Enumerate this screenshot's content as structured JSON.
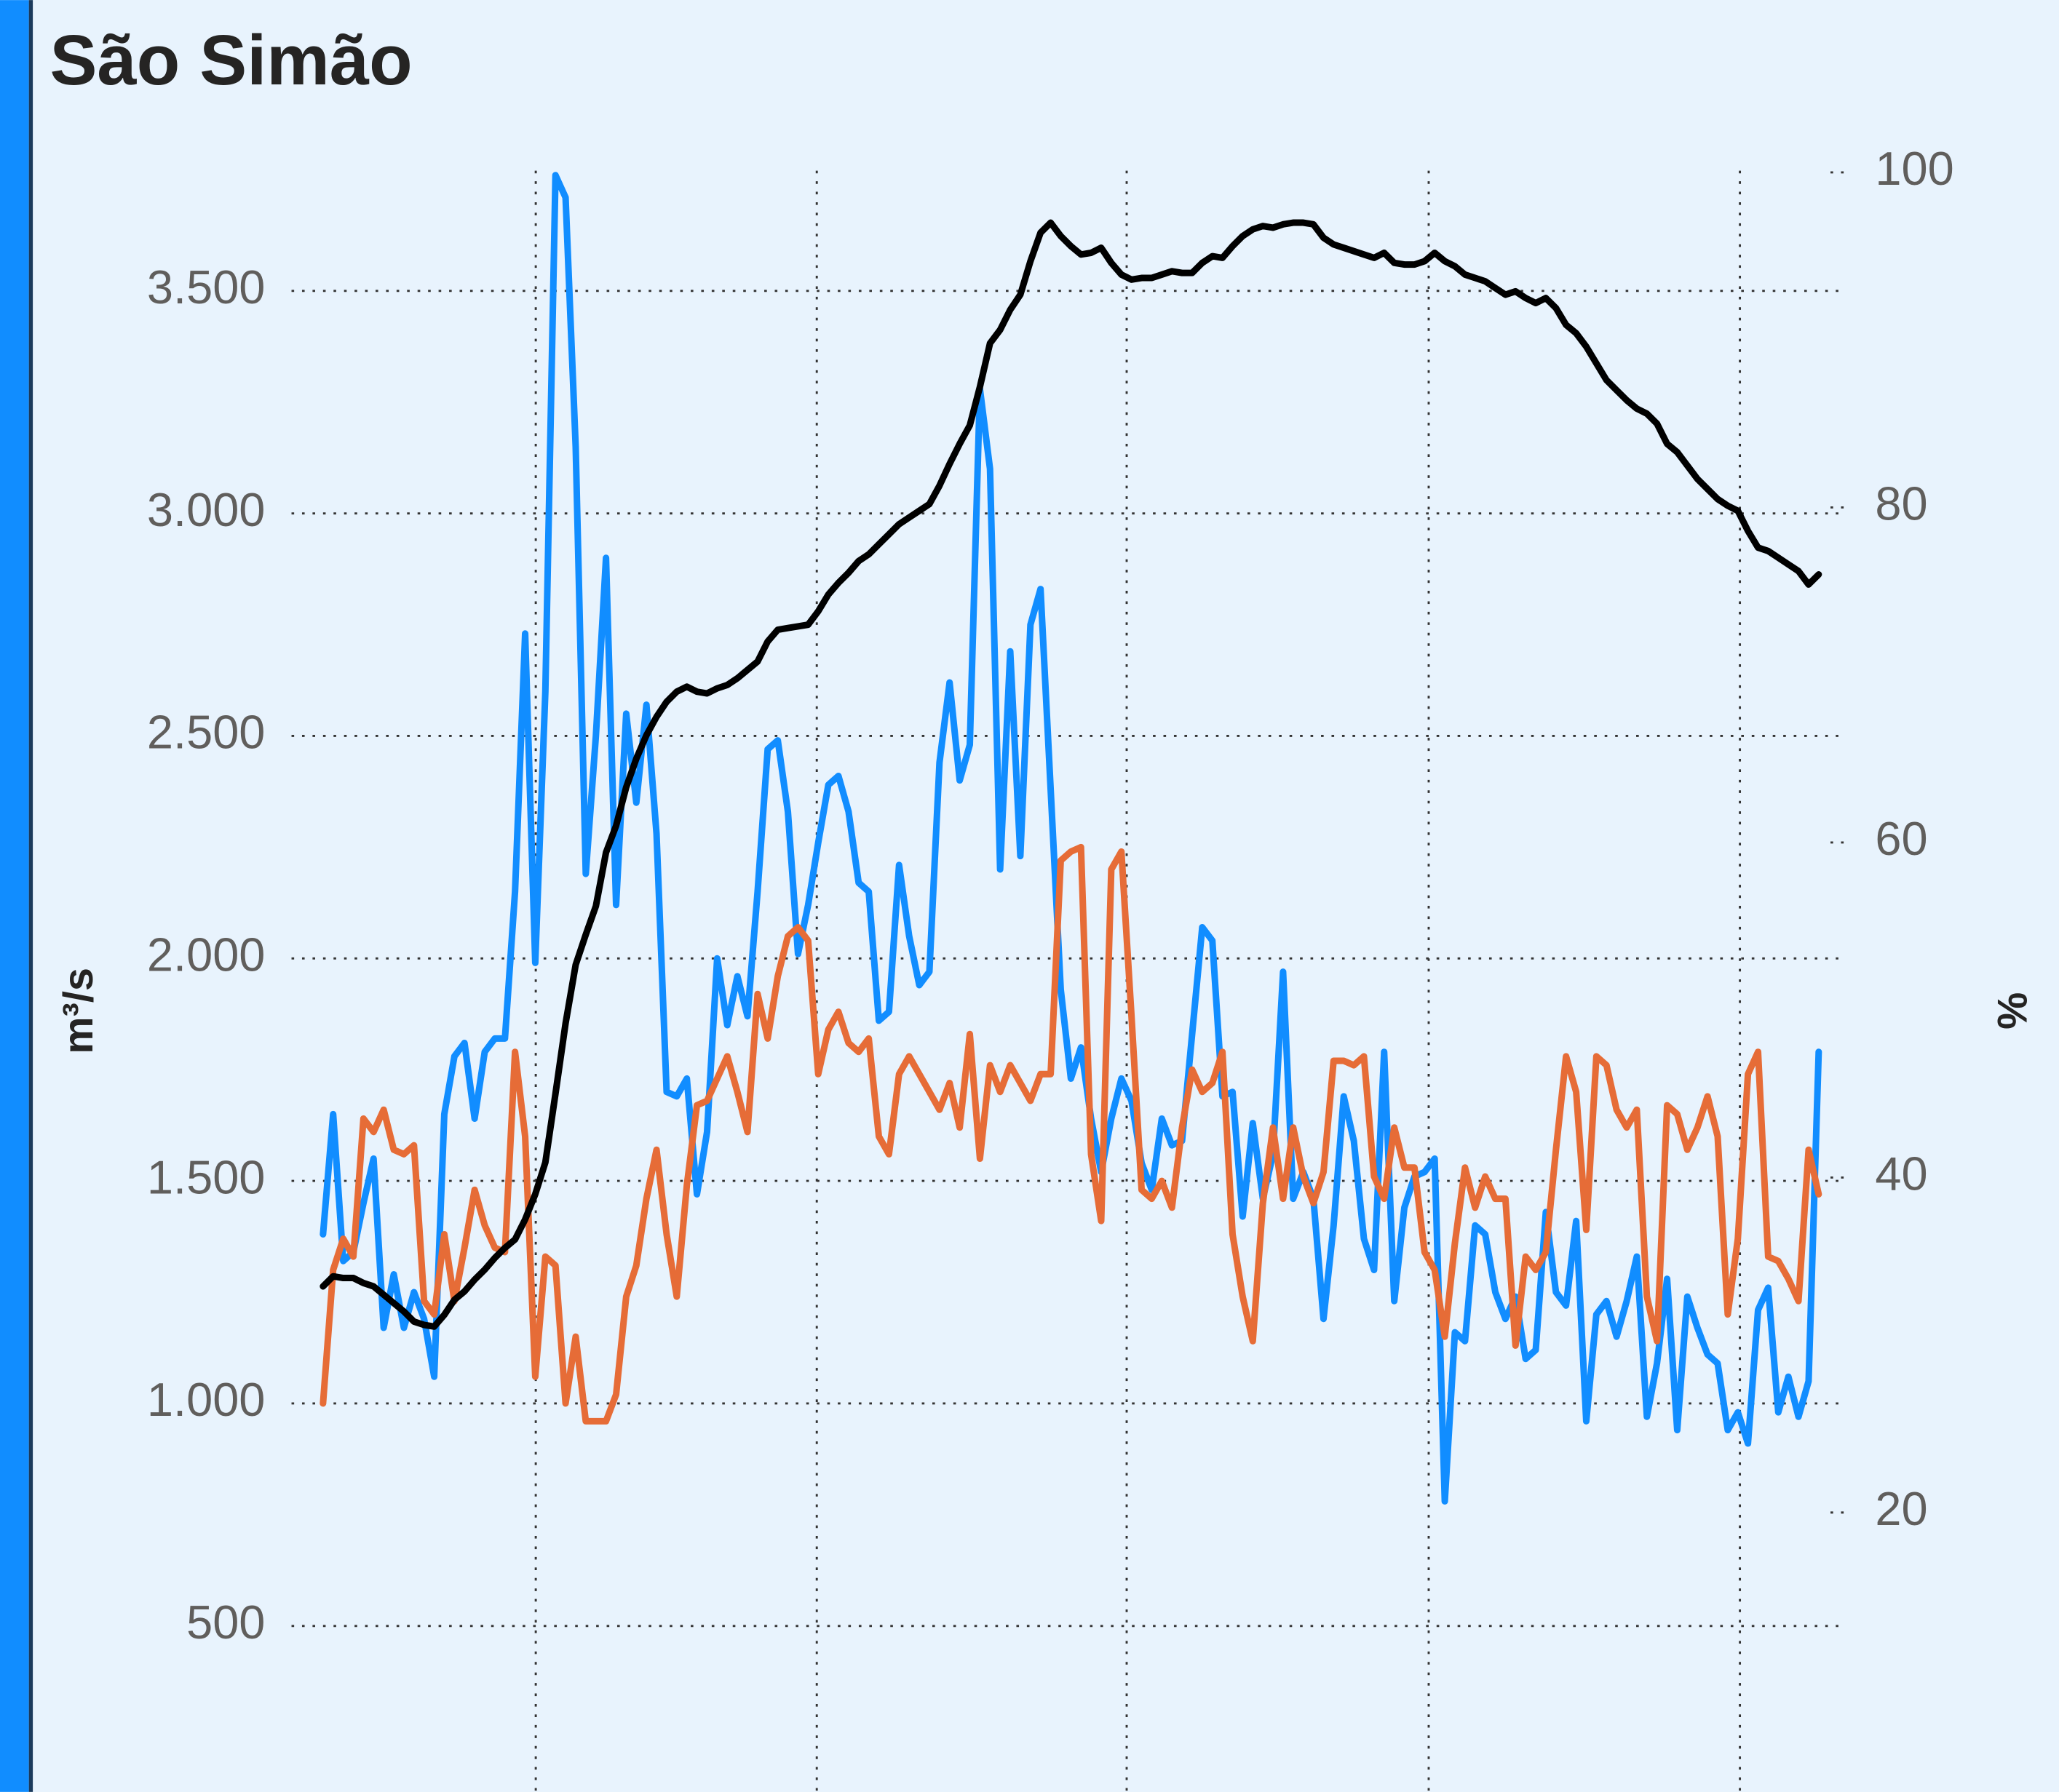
{
  "chart_data": {
    "type": "line",
    "title": "São Simão",
    "y_label": "m³/s",
    "y2_label": "%",
    "ylim": [
      130,
      3770
    ],
    "yticks": [
      500,
      {
        "value": 1000,
        "label": "1.000"
      },
      {
        "value": 1500,
        "label": "1.500"
      },
      {
        "value": 2000,
        "label": "2.000"
      },
      {
        "value": 2500,
        "label": "2.500"
      },
      {
        "value": 3000,
        "label": "3.000"
      },
      {
        "value": 3500,
        "label": "3.500"
      }
    ],
    "y2lim": [
      3.4,
      100.1
    ],
    "y2ticks": [
      20,
      40,
      60,
      80,
      100
    ],
    "grid": true,
    "categories": [
      null,
      null,
      null,
      null,
      null,
      null,
      null,
      null,
      null,
      null,
      null,
      null,
      null,
      null,
      null,
      null,
      null,
      null,
      null,
      null,
      null,
      null,
      null,
      null,
      null,
      null,
      null,
      null,
      null,
      null,
      null,
      null,
      null,
      null,
      null,
      null,
      null,
      null,
      null,
      null,
      null,
      null,
      null,
      null,
      null,
      null,
      null,
      null,
      null,
      null,
      null,
      null,
      null,
      null,
      null,
      null,
      null,
      null,
      null,
      null,
      null,
      null,
      null,
      null,
      null,
      null,
      null,
      null,
      null,
      null,
      null,
      null,
      null,
      null,
      null,
      null,
      null,
      null,
      null,
      null,
      null,
      null,
      null,
      null,
      null,
      null,
      null,
      null,
      null,
      null,
      null,
      null,
      null,
      null,
      null,
      null,
      null,
      null,
      null,
      null,
      null,
      null,
      null,
      null,
      null,
      null,
      null,
      null,
      null,
      null,
      null,
      null,
      null,
      null,
      null,
      null,
      null,
      null,
      null,
      null,
      null,
      null,
      null,
      null,
      null,
      null,
      null,
      null,
      null,
      null,
      null,
      null,
      null,
      null,
      null,
      null,
      null,
      null,
      null,
      null,
      null,
      null,
      null,
      null,
      null,
      null,
      null,
      null,
      null
    ],
    "series": [
      {
        "color": "#118dff",
        "values": [
          1380,
          1650,
          1320,
          1340,
          1450,
          1550,
          1170,
          1290,
          1170,
          1250,
          1190,
          1060,
          1650,
          1780,
          1810,
          1640,
          1790,
          1820,
          1820,
          2150,
          2730,
          1990,
          2600,
          3760,
          3710,
          3150,
          2190,
          2500,
          2900,
          2120,
          2550,
          2350,
          2570,
          2280,
          1700,
          1690,
          1730,
          1470,
          1610,
          2000,
          1850,
          1960,
          1870,
          2150,
          2470,
          2490,
          2330,
          2010,
          2120,
          2260,
          2390,
          2410,
          2330,
          2170,
          2150,
          1860,
          1880,
          2210,
          2050,
          1940,
          1970,
          2440,
          2620,
          2400,
          2480,
          3280,
          3100,
          2200,
          2690,
          2230,
          2750,
          2830,
          2380,
          1930,
          1730,
          1800,
          1640,
          1520,
          1640,
          1730,
          1680,
          1540,
          1480,
          1640,
          1580,
          1590,
          1830,
          2070,
          2040,
          1690,
          1700,
          1420,
          1630,
          1460,
          1560,
          1970,
          1460,
          1520,
          1460,
          1190,
          1400,
          1690,
          1590,
          1370,
          1300,
          1790,
          1230,
          1440,
          1510,
          1520,
          1550,
          780,
          1160,
          1140,
          1400,
          1380,
          1250,
          1190,
          1240,
          1100,
          1120,
          1430,
          1250,
          1220,
          1410,
          960,
          1200,
          1230,
          1150,
          1230,
          1330,
          970,
          1090,
          1280,
          940,
          1240,
          1170,
          1110,
          1090,
          940,
          980,
          910,
          1210,
          1260,
          980,
          1060,
          970,
          1050,
          1790
        ]
      },
      {
        "color": "#e66c37",
        "values": [
          1000,
          1300,
          1370,
          1330,
          1640,
          1610,
          1660,
          1570,
          1560,
          1580,
          1230,
          1200,
          1380,
          1230,
          1350,
          1480,
          1400,
          1350,
          1340,
          1790,
          1600,
          1060,
          1330,
          1310,
          1000,
          1150,
          960,
          960,
          960,
          1020,
          1240,
          1310,
          1460,
          1570,
          1380,
          1240,
          1490,
          1670,
          1680,
          1730,
          1780,
          1700,
          1610,
          1920,
          1820,
          1960,
          2050,
          2070,
          2040,
          1740,
          1840,
          1880,
          1810,
          1790,
          1820,
          1600,
          1560,
          1740,
          1780,
          1740,
          1700,
          1660,
          1720,
          1620,
          1830,
          1550,
          1760,
          1700,
          1760,
          1720,
          1680,
          1740,
          1740,
          2220,
          2240,
          2250,
          1560,
          1410,
          2200,
          2240,
          1870,
          1480,
          1460,
          1500,
          1440,
          1620,
          1750,
          1700,
          1720,
          1790,
          1380,
          1240,
          1140,
          1450,
          1620,
          1460,
          1620,
          1510,
          1450,
          1520,
          1770,
          1770,
          1760,
          1780,
          1510,
          1460,
          1620,
          1530,
          1530,
          1340,
          1300,
          1150,
          1360,
          1530,
          1440,
          1510,
          1460,
          1460,
          1130,
          1330,
          1300,
          1340,
          1570,
          1780,
          1700,
          1390,
          1780,
          1760,
          1660,
          1620,
          1660,
          1240,
          1140,
          1670,
          1650,
          1570,
          1620,
          1690,
          1600,
          1200,
          1370,
          1740,
          1790,
          1330,
          1320,
          1280,
          1230,
          1570,
          1470
        ]
      },
      {
        "color": "#000000",
        "axis": "y2",
        "values": [
          33.5,
          34.1,
          34.0,
          34.0,
          33.7,
          33.5,
          33.0,
          32.5,
          32.0,
          31.4,
          31.2,
          31.1,
          31.8,
          32.7,
          33.2,
          33.9,
          34.5,
          35.2,
          35.8,
          36.3,
          37.5,
          39,
          40.9,
          45,
          49.2,
          52.7,
          54.5,
          56.2,
          59.4,
          61,
          63.3,
          65,
          66.4,
          67.5,
          68.4,
          69,
          69.3,
          69,
          68.9,
          69.2,
          69.4,
          69.8,
          70.3,
          70.8,
          72,
          72.7,
          72.8,
          72.9,
          73,
          73.8,
          74.8,
          75.5,
          76.1,
          76.8,
          77.2,
          77.8,
          78.4,
          79,
          79.4,
          79.8,
          80.2,
          81.3,
          82.6,
          83.8,
          84.9,
          87.2,
          89.8,
          90.6,
          91.8,
          92.7,
          94.7,
          96.4,
          97,
          96.2,
          95.6,
          95.1,
          95.2,
          95.5,
          94.6,
          93.9,
          93.6,
          93.7,
          93.7,
          93.9,
          94.1,
          94,
          94,
          94.6,
          95,
          94.9,
          95.6,
          96.2,
          96.6,
          96.8,
          96.7,
          96.9,
          97,
          97,
          96.9,
          96.1,
          95.7,
          95.5,
          95.3,
          95.1,
          94.9,
          95.2,
          94.6,
          94.5,
          94.5,
          94.7,
          95.2,
          94.7,
          94.4,
          93.9,
          93.7,
          93.5,
          93.1,
          92.7,
          92.9,
          92.5,
          92.2,
          92.5,
          91.9,
          90.9,
          90.4,
          89.6,
          88.6,
          87.6,
          87,
          86.4,
          85.9,
          85.6,
          85,
          83.8,
          83.3,
          82.5,
          81.7,
          81.1,
          80.5,
          80.1,
          79.8,
          78.6,
          77.6,
          77.4,
          77,
          76.6,
          76.2,
          75.4,
          76
        ]
      }
    ]
  }
}
